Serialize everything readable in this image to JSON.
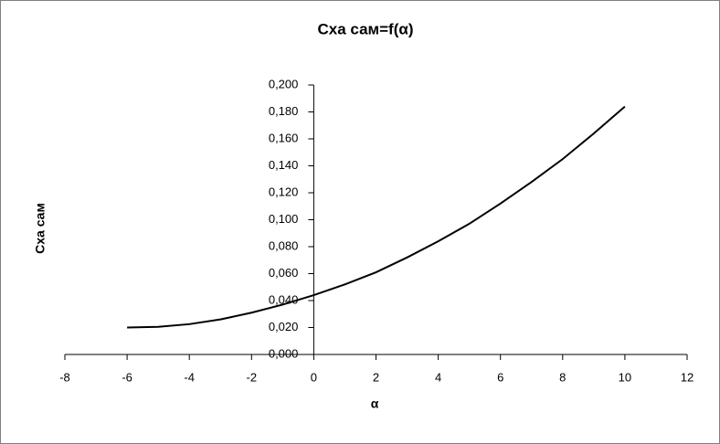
{
  "chart_data": {
    "type": "line",
    "title": "Cxa сам=f(α)",
    "x_label": "α",
    "y_label": "Cxa сам",
    "x": [
      -6,
      -5,
      -4,
      -3,
      -2,
      -1,
      0,
      1,
      2,
      3,
      4,
      5,
      6,
      7,
      8,
      9,
      10
    ],
    "values": [
      0.02,
      0.0205,
      0.0225,
      0.026,
      0.031,
      0.037,
      0.044,
      0.052,
      0.061,
      0.072,
      0.084,
      0.097,
      0.112,
      0.128,
      0.145,
      0.164,
      0.184
    ],
    "color": "#000000",
    "xlim": [
      -8,
      12
    ],
    "xticks": [
      -8,
      -6,
      -4,
      -2,
      0,
      2,
      4,
      6,
      8,
      10,
      12
    ],
    "ylim": [
      0,
      0.2
    ],
    "yticks": [
      {
        "value": 0,
        "label": "0,000"
      },
      {
        "value": 0.02,
        "label": "0,020"
      },
      {
        "value": 0.04,
        "label": "0,040"
      },
      {
        "value": 0.06,
        "label": "0,060"
      },
      {
        "value": 0.08,
        "label": "0,080"
      },
      {
        "value": 0.1,
        "label": "0,100"
      },
      {
        "value": 0.12,
        "label": "0,120"
      },
      {
        "value": 0.14,
        "label": "0,140"
      },
      {
        "value": 0.16,
        "label": "0,160"
      },
      {
        "value": 0.18,
        "label": "0,180"
      },
      {
        "value": 0.2,
        "label": "0,200"
      }
    ],
    "grid": false
  }
}
